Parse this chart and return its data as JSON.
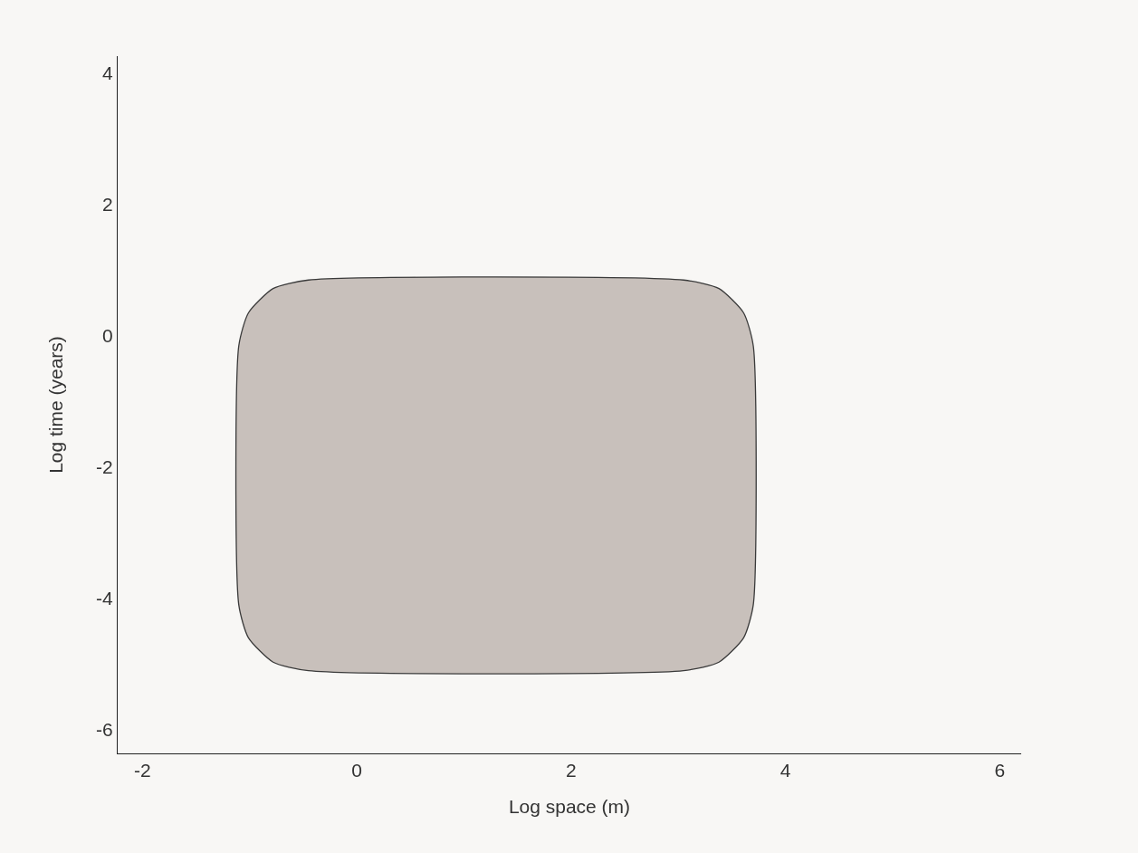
{
  "chart_data": {
    "type": "area",
    "xlabel": "Log space (m)",
    "ylabel": "Log time (years)",
    "xlim": [
      -2.23,
      6.2
    ],
    "ylim": [
      -6.36,
      4.26
    ],
    "xticks": [
      -2,
      0,
      2,
      4,
      6
    ],
    "yticks": [
      -6,
      -4,
      -2,
      0,
      2,
      4
    ],
    "grid": false,
    "marker": "none",
    "line_style": "solid",
    "series": [
      {
        "color": "#c8c0bb",
        "x": [
          3.7,
          3.61,
          3.38,
          3.05,
          -0.45,
          -0.78,
          -1.01,
          -1.1,
          -1.1,
          -1.01,
          -0.78,
          -0.45,
          3.05,
          3.38,
          3.61,
          3.7,
          3.7
        ],
        "values": [
          -0.15,
          0.35,
          0.72,
          0.85,
          0.85,
          0.72,
          0.35,
          -0.15,
          -4.1,
          -4.6,
          -4.97,
          -5.1,
          -5.1,
          -4.97,
          -4.6,
          -4.1,
          -0.15
        ]
      }
    ]
  }
}
